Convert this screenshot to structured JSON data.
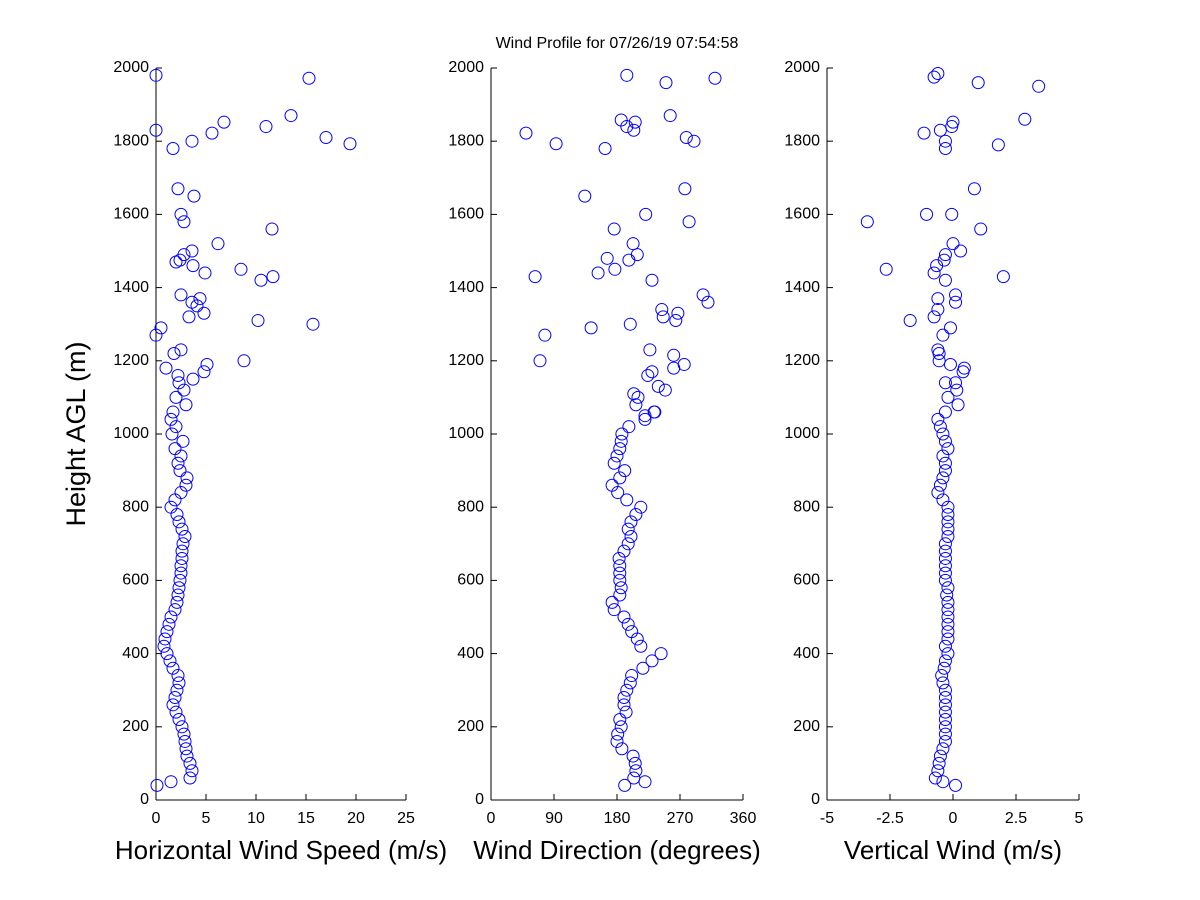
{
  "chart_data": [
    {
      "type": "scatter",
      "title": "Wind Profile for  07/26/19 07:54:58",
      "xlabel": "Horizontal Wind Speed (m/s)",
      "ylabel": "Height AGL (m)",
      "color": "#0000ff",
      "xlim": [
        0,
        25
      ],
      "xticks": [
        0,
        5,
        10,
        15,
        20,
        25
      ],
      "ylim": [
        0,
        2000
      ],
      "yticks": [
        0,
        200,
        400,
        600,
        800,
        1000,
        1200,
        1400,
        1600,
        1800,
        2000
      ],
      "x": [
        0.1,
        3.4,
        3.6,
        3.4,
        3.1,
        3.0,
        2.9,
        2.8,
        2.6,
        2.3,
        2.0,
        1.7,
        1.9,
        2.1,
        2.3,
        2.2,
        1.7,
        1.4,
        1.1,
        0.8,
        0.9,
        1.1,
        1.3,
        1.5,
        1.9,
        2.1,
        2.2,
        2.3,
        2.4,
        2.5,
        2.5,
        2.6,
        2.6,
        2.7,
        2.9,
        2.6,
        2.3,
        2.1,
        1.5,
        1.9,
        2.5,
        3.0,
        3.1,
        2.4,
        2.2,
        2.5,
        1.9,
        2.7,
        1.6,
        2.0,
        1.5,
        1.7,
        3.0,
        2.0,
        1.5,
        2.8,
        2.3,
        3.7,
        2.2,
        4.8,
        0,
        0,
        15.3,
        13.5,
        17.0,
        19.4,
        11.0,
        6.8,
        5.6,
        3.6,
        1.7,
        2.2,
        3.8,
        2.5,
        2.8,
        11.6,
        6.2,
        3.6,
        2.8,
        2.4,
        2.0,
        3.7,
        4.9,
        8.5,
        11.7,
        10.5,
        2.5,
        4.4,
        3.6,
        4.1,
        4.8,
        3.3,
        10.2,
        15.7,
        0.5,
        0,
        2.5,
        1.8,
        8.8,
        5.1,
        1.0
      ],
      "values": [
        40,
        60,
        80,
        100,
        120,
        140,
        160,
        180,
        200,
        220,
        240,
        260,
        280,
        300,
        320,
        340,
        360,
        380,
        400,
        420,
        440,
        460,
        480,
        500,
        520,
        540,
        560,
        580,
        600,
        620,
        640,
        660,
        680,
        700,
        720,
        740,
        760,
        780,
        800,
        820,
        840,
        860,
        880,
        900,
        920,
        940,
        960,
        980,
        1000,
        1020,
        1040,
        1060,
        1080,
        1100,
        50,
        1120,
        1140,
        1150,
        1160,
        1170,
        1980,
        1830,
        1972,
        1870,
        1810,
        1793,
        1840,
        1852,
        1822,
        1800,
        1780,
        1670,
        1650,
        1600,
        1580,
        1560,
        1520,
        1500,
        1490,
        1475,
        1470,
        1460,
        1440,
        1450,
        1430,
        1420,
        1380,
        1370,
        1360,
        1350,
        1330,
        1320,
        1310,
        1300,
        1290,
        1270,
        1230,
        1220,
        1200,
        1190,
        1180
      ]
    },
    {
      "type": "scatter",
      "xlabel": "Wind Direction (degrees)",
      "color": "#0000ff",
      "xlim": [
        0,
        360
      ],
      "xticks": [
        0,
        90,
        180,
        270,
        360
      ],
      "ylim": [
        0,
        2000
      ],
      "yticks": [
        0,
        200,
        400,
        600,
        800,
        1000,
        1200,
        1400,
        1600,
        1800,
        2000
      ],
      "x": [
        191,
        204,
        207,
        206,
        203,
        187,
        180,
        181,
        186,
        184,
        193,
        190,
        190,
        194,
        199,
        201,
        217,
        230,
        243,
        214,
        209,
        201,
        196,
        190,
        176,
        173,
        184,
        186,
        184,
        184,
        184,
        183,
        190,
        196,
        200,
        196,
        200,
        207,
        214,
        194,
        181,
        173,
        184,
        191,
        176,
        180,
        184,
        186,
        187,
        197,
        220,
        233,
        207,
        210,
        220,
        194,
        250,
        320,
        50,
        93,
        186,
        194,
        206,
        204,
        163,
        256,
        279,
        290,
        134,
        277,
        176,
        221,
        283,
        203,
        209,
        197,
        166,
        177,
        153,
        63,
        230,
        303,
        244,
        310,
        267,
        246,
        264,
        199,
        143,
        77,
        227,
        70,
        261,
        276,
        261,
        230,
        224,
        239,
        249,
        204,
        234,
        220
      ],
      "values": [
        40,
        60,
        80,
        100,
        120,
        140,
        160,
        180,
        200,
        220,
        240,
        260,
        280,
        300,
        320,
        340,
        360,
        380,
        400,
        420,
        440,
        460,
        480,
        500,
        520,
        540,
        560,
        580,
        600,
        620,
        640,
        660,
        680,
        700,
        720,
        740,
        760,
        780,
        800,
        820,
        840,
        860,
        880,
        900,
        920,
        940,
        960,
        980,
        1000,
        1020,
        1040,
        1060,
        1080,
        1100,
        50,
        1980,
        1960,
        1972,
        1822,
        1793,
        1858,
        1840,
        1852,
        1830,
        1780,
        1870,
        1810,
        1800,
        1650,
        1670,
        1560,
        1600,
        1580,
        1520,
        1490,
        1475,
        1480,
        1450,
        1440,
        1430,
        1420,
        1380,
        1340,
        1360,
        1330,
        1320,
        1310,
        1300,
        1290,
        1270,
        1230,
        1200,
        1215,
        1190,
        1180,
        1170,
        1160,
        1130,
        1120,
        1110,
        1060,
        1050
      ]
    },
    {
      "type": "scatter",
      "xlabel": "Vertical Wind (m/s)",
      "color": "#0000ff",
      "xlim": [
        -5,
        5
      ],
      "xticks": [
        -5,
        -2.5,
        0,
        2.5,
        5
      ],
      "ylim": [
        0,
        2000
      ],
      "yticks": [
        0,
        200,
        400,
        600,
        800,
        1000,
        1200,
        1400,
        1600,
        1800,
        2000
      ],
      "x": [
        0.1,
        -0.7,
        -0.6,
        -0.55,
        -0.5,
        -0.4,
        -0.3,
        -0.3,
        -0.3,
        -0.3,
        -0.3,
        -0.3,
        -0.3,
        -0.3,
        -0.4,
        -0.45,
        -0.35,
        -0.3,
        -0.2,
        -0.3,
        -0.2,
        -0.2,
        -0.2,
        -0.2,
        -0.2,
        -0.2,
        -0.25,
        -0.2,
        -0.3,
        -0.3,
        -0.3,
        -0.3,
        -0.3,
        -0.3,
        -0.2,
        -0.2,
        -0.2,
        -0.2,
        -0.2,
        -0.4,
        -0.6,
        -0.5,
        -0.4,
        -0.3,
        -0.3,
        -0.4,
        -0.2,
        -0.3,
        -0.4,
        -0.5,
        -0.6,
        -0.3,
        0.2,
        -0.2,
        -0.4,
        -0.75,
        -0.6,
        1.0,
        3.4,
        -1.15,
        -0.5,
        -0.05,
        0,
        -0.3,
        -0.3,
        2.85,
        1.8,
        0.85,
        -3.4,
        -1.05,
        -0.05,
        1.1,
        0,
        0.3,
        -0.3,
        -0.35,
        -0.65,
        -2.65,
        -0.75,
        2.0,
        -0.3,
        0.1,
        0.1,
        -0.6,
        -0.6,
        -0.75,
        -1.7,
        -0.1,
        -0.4,
        -0.6,
        -0.55,
        -0.55,
        0.45,
        0.4,
        -0.1,
        0.1,
        0.15,
        -0.3
      ],
      "values": [
        40,
        60,
        80,
        100,
        120,
        140,
        160,
        180,
        200,
        220,
        240,
        260,
        280,
        300,
        320,
        340,
        360,
        380,
        400,
        420,
        440,
        460,
        480,
        500,
        520,
        540,
        560,
        580,
        600,
        620,
        640,
        660,
        680,
        700,
        720,
        740,
        760,
        780,
        800,
        820,
        840,
        860,
        880,
        900,
        920,
        940,
        960,
        980,
        1000,
        1020,
        1040,
        1060,
        1080,
        1100,
        50,
        1975,
        1985,
        1960,
        1950,
        1822,
        1830,
        1840,
        1852,
        1800,
        1780,
        1860,
        1790,
        1670,
        1580,
        1600,
        1600,
        1560,
        1520,
        1500,
        1490,
        1475,
        1460,
        1450,
        1440,
        1430,
        1420,
        1380,
        1360,
        1370,
        1340,
        1320,
        1310,
        1290,
        1270,
        1230,
        1220,
        1200,
        1180,
        1170,
        1190,
        1140,
        1120,
        1140
      ]
    }
  ]
}
